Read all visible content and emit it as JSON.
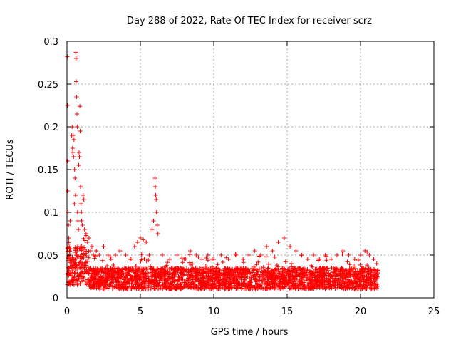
{
  "chart_data": {
    "type": "scatter",
    "title": "Day 288 of 2022, Rate Of TEC Index for receiver scrz",
    "xlabel": "GPS time / hours",
    "ylabel": "ROTI / TECUs",
    "xlim": [
      0,
      25
    ],
    "ylim": [
      0,
      0.3
    ],
    "xticks": [
      0,
      5,
      10,
      15,
      20,
      25
    ],
    "yticks": [
      0,
      0.05,
      0.1,
      0.15,
      0.2,
      0.25,
      0.3
    ],
    "xtick_labels": [
      "0",
      "5",
      "10",
      "15",
      "20",
      "25"
    ],
    "ytick_labels": [
      "0",
      "0.05",
      "0.1",
      "0.15",
      "0.2",
      "0.25",
      "0.3"
    ],
    "grid": true,
    "marker": "+",
    "color": "#ff0000",
    "series": [
      {
        "name": "ROTI",
        "points": [
          [
            0.02,
            0.282
          ],
          [
            0.03,
            0.225
          ],
          [
            0.05,
            0.16
          ],
          [
            0.05,
            0.125
          ],
          [
            0.08,
            0.1
          ],
          [
            0.1,
            0.085
          ],
          [
            0.12,
            0.07
          ],
          [
            0.15,
            0.06
          ],
          [
            0.18,
            0.055
          ],
          [
            0.2,
            0.05
          ],
          [
            0.22,
            0.09
          ],
          [
            0.25,
            0.045
          ],
          [
            0.3,
            0.04
          ],
          [
            0.32,
            0.19
          ],
          [
            0.35,
            0.2
          ],
          [
            0.38,
            0.175
          ],
          [
            0.4,
            0.17
          ],
          [
            0.42,
            0.19
          ],
          [
            0.45,
            0.165
          ],
          [
            0.48,
            0.185
          ],
          [
            0.5,
            0.11
          ],
          [
            0.52,
            0.15
          ],
          [
            0.55,
            0.14
          ],
          [
            0.58,
            0.12
          ],
          [
            0.6,
            0.287
          ],
          [
            0.62,
            0.28
          ],
          [
            0.63,
            0.253
          ],
          [
            0.65,
            0.235
          ],
          [
            0.68,
            0.215
          ],
          [
            0.7,
            0.2
          ],
          [
            0.72,
            0.1
          ],
          [
            0.75,
            0.09
          ],
          [
            0.78,
            0.08
          ],
          [
            0.8,
            0.155
          ],
          [
            0.82,
            0.17
          ],
          [
            0.85,
            0.165
          ],
          [
            0.88,
            0.224
          ],
          [
            0.9,
            0.195
          ],
          [
            0.92,
            0.13
          ],
          [
            0.95,
            0.11
          ],
          [
            0.98,
            0.1
          ],
          [
            1.0,
            0.09
          ],
          [
            1.05,
            0.085
          ],
          [
            1.1,
            0.12
          ],
          [
            1.15,
            0.115
          ],
          [
            1.2,
            0.08
          ],
          [
            1.3,
            0.075
          ],
          [
            1.4,
            0.065
          ],
          [
            1.5,
            0.07
          ],
          [
            1.6,
            0.055
          ],
          [
            1.7,
            0.06
          ],
          [
            1.8,
            0.05
          ],
          [
            2.0,
            0.055
          ],
          [
            2.2,
            0.05
          ],
          [
            2.5,
            0.06
          ],
          [
            2.8,
            0.05
          ],
          [
            3.0,
            0.045
          ],
          [
            3.3,
            0.05
          ],
          [
            3.6,
            0.055
          ],
          [
            4.0,
            0.05
          ],
          [
            4.3,
            0.045
          ],
          [
            4.6,
            0.06
          ],
          [
            4.8,
            0.065
          ],
          [
            5.0,
            0.07
          ],
          [
            5.2,
            0.068
          ],
          [
            5.4,
            0.065
          ],
          [
            5.6,
            0.05
          ],
          [
            5.8,
            0.08
          ],
          [
            5.9,
            0.09
          ],
          [
            6.0,
            0.14
          ],
          [
            6.02,
            0.13
          ],
          [
            6.05,
            0.12
          ],
          [
            6.08,
            0.115
          ],
          [
            6.1,
            0.1
          ],
          [
            6.15,
            0.085
          ],
          [
            6.2,
            0.075
          ],
          [
            6.5,
            0.05
          ],
          [
            7.0,
            0.045
          ],
          [
            7.5,
            0.05
          ],
          [
            8.0,
            0.045
          ],
          [
            8.4,
            0.055
          ],
          [
            8.8,
            0.05
          ],
          [
            9.2,
            0.045
          ],
          [
            9.6,
            0.05
          ],
          [
            10.0,
            0.045
          ],
          [
            10.5,
            0.05
          ],
          [
            11.0,
            0.045
          ],
          [
            11.5,
            0.05
          ],
          [
            12.0,
            0.045
          ],
          [
            12.4,
            0.05
          ],
          [
            12.8,
            0.055
          ],
          [
            13.2,
            0.05
          ],
          [
            13.6,
            0.06
          ],
          [
            14.0,
            0.055
          ],
          [
            14.4,
            0.065
          ],
          [
            14.8,
            0.07
          ],
          [
            15.2,
            0.06
          ],
          [
            15.6,
            0.055
          ],
          [
            16.0,
            0.05
          ],
          [
            16.4,
            0.045
          ],
          [
            16.8,
            0.05
          ],
          [
            17.2,
            0.045
          ],
          [
            17.6,
            0.05
          ],
          [
            18.0,
            0.045
          ],
          [
            18.4,
            0.05
          ],
          [
            18.8,
            0.055
          ],
          [
            19.2,
            0.05
          ],
          [
            19.6,
            0.045
          ],
          [
            20.0,
            0.05
          ],
          [
            20.3,
            0.055
          ],
          [
            20.6,
            0.05
          ],
          [
            20.9,
            0.045
          ],
          [
            21.1,
            0.04
          ]
        ],
        "band": {
          "description": "dense scatter band of ROTI samples",
          "x_range": [
            0,
            21.2
          ],
          "typical_low": 0.01,
          "typical_high": 0.035,
          "spread_floor": 0.005
        }
      }
    ]
  }
}
